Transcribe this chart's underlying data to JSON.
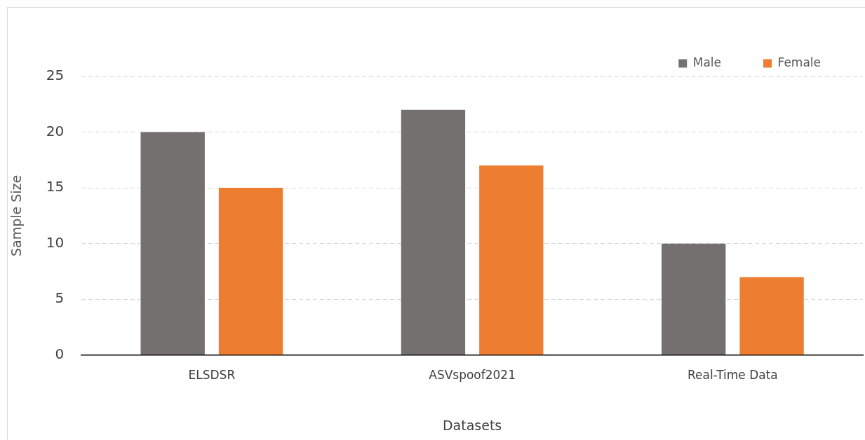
{
  "chart_data": {
    "type": "bar",
    "xlabel": "Datasets",
    "ylabel": "Sample Size",
    "categories": [
      "ELSDSR",
      "ASVspoof2021",
      "Real-Time Data"
    ],
    "series": [
      {
        "name": "Male",
        "color": "#757070",
        "values": [
          20,
          22,
          10
        ]
      },
      {
        "name": "Female",
        "color": "#ed7d31",
        "values": [
          15,
          17,
          7
        ]
      }
    ],
    "ylim": [
      0,
      25
    ],
    "yticks": [
      0,
      5,
      10,
      15,
      20,
      25
    ],
    "grid": "y",
    "legend": "top right"
  }
}
